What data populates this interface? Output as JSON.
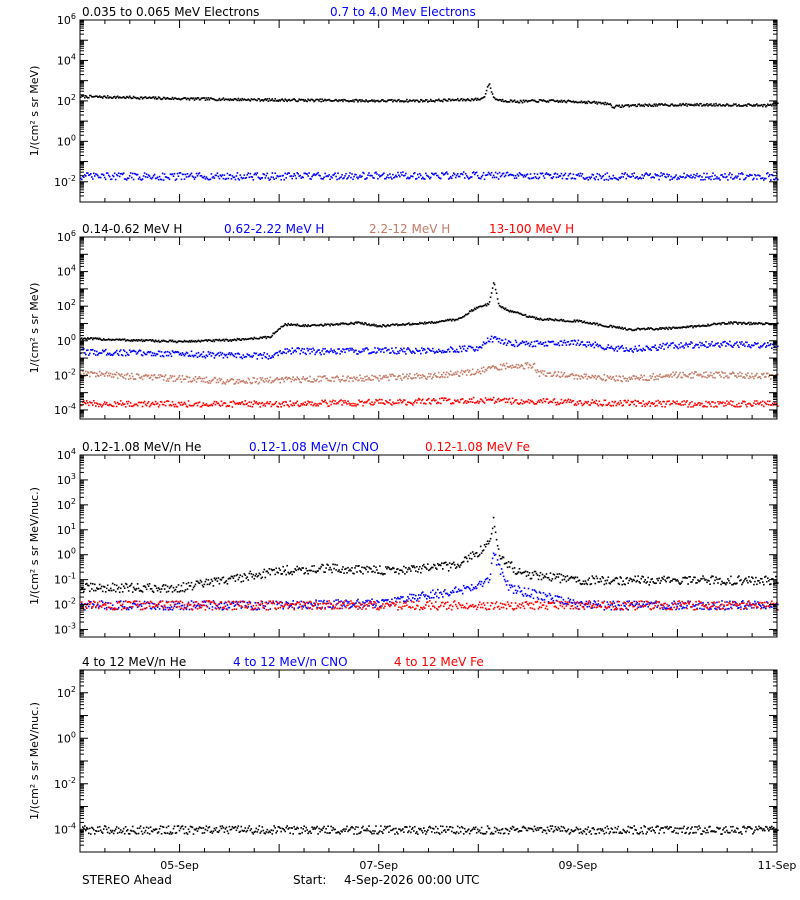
{
  "footer": {
    "spacecraft": "STEREO Ahead",
    "start_label": "Start:",
    "start_value": "4-Sep-2026 00:00 UTC"
  },
  "colors": {
    "black": "#000000",
    "blue": "#0000ff",
    "brown": "#c47b67",
    "red": "#ff0000"
  },
  "chart_data": [
    {
      "type": "scatter",
      "ylabel": "1/(cm² s sr MeV)",
      "scale": "log",
      "ylim": [
        0.001,
        1000000
      ],
      "yticks": [
        {
          "value": 1000000,
          "label": "10^6"
        },
        {
          "value": 10000,
          "label": "10^4"
        },
        {
          "value": 100,
          "label": "10^2"
        },
        {
          "value": 1,
          "label": "10^0"
        },
        {
          "value": 0.01,
          "label": "10^-2"
        }
      ],
      "series": [
        {
          "name": "0.035 to 0.065 MeV Electrons",
          "color": "#000000",
          "x": [
            4.0,
            4.5,
            5.0,
            5.5,
            6.0,
            6.5,
            7.0,
            7.5,
            8.0,
            8.05,
            8.1,
            8.15,
            8.2,
            8.4,
            8.6,
            9.0,
            9.3,
            9.35,
            9.5,
            10.0,
            10.5,
            10.9,
            11.0
          ],
          "y": [
            180,
            160,
            140,
            130,
            120,
            115,
            110,
            112,
            130,
            160,
            800,
            150,
            120,
            100,
            110,
            100,
            80,
            55,
            65,
            70,
            70,
            65,
            80
          ]
        },
        {
          "name": "0.7 to 4.0 Mev Electrons",
          "color": "#0000ff",
          "x": [
            4.0,
            5.0,
            6.0,
            7.0,
            8.0,
            9.0,
            10.0,
            11.0
          ],
          "y": [
            0.02,
            0.02,
            0.02,
            0.022,
            0.022,
            0.02,
            0.02,
            0.02
          ]
        }
      ]
    },
    {
      "type": "scatter",
      "ylabel": "1/(cm² s sr MeV)",
      "scale": "log",
      "ylim": [
        3e-05,
        1000000
      ],
      "yticks": [
        {
          "value": 1000000,
          "label": "10^6"
        },
        {
          "value": 10000,
          "label": "10^4"
        },
        {
          "value": 100,
          "label": "10^2"
        },
        {
          "value": 1,
          "label": "10^0"
        },
        {
          "value": 0.01,
          "label": "10^-2"
        },
        {
          "value": 0.0001,
          "label": "10^-4"
        }
      ],
      "series": [
        {
          "name": "0.14-0.62 MeV H",
          "color": "#000000",
          "x": [
            4.0,
            4.5,
            5.0,
            5.5,
            5.9,
            6.05,
            6.3,
            6.8,
            7.0,
            7.5,
            7.8,
            7.9,
            8.0,
            8.1,
            8.15,
            8.2,
            8.3,
            8.6,
            9.0,
            9.5,
            10.0,
            10.5,
            11.0
          ],
          "y": [
            1.5,
            1.2,
            1.0,
            1.2,
            1.8,
            10,
            8,
            12,
            8,
            12,
            20,
            50,
            100,
            150,
            3000,
            120,
            60,
            20,
            15,
            5,
            6,
            12,
            10
          ]
        },
        {
          "name": "0.62-2.22 MeV H",
          "color": "#0000ff",
          "x": [
            4.0,
            4.5,
            5.0,
            5.5,
            5.9,
            6.05,
            6.5,
            7.0,
            7.5,
            8.0,
            8.1,
            8.3,
            8.6,
            9.0,
            9.5,
            10.0,
            10.5,
            11.0
          ],
          "y": [
            0.25,
            0.22,
            0.2,
            0.15,
            0.15,
            0.3,
            0.25,
            0.3,
            0.28,
            0.45,
            1.5,
            0.8,
            0.7,
            0.8,
            0.35,
            0.6,
            0.7,
            0.6
          ]
        },
        {
          "name": "2.2-12 MeV H",
          "color": "#c47b67",
          "x": [
            4.0,
            4.5,
            5.0,
            5.5,
            6.0,
            6.5,
            7.0,
            7.5,
            7.8,
            8.0,
            8.3,
            8.55,
            8.6,
            9.0,
            9.5,
            10.0,
            10.5,
            11.0
          ],
          "y": [
            0.015,
            0.01,
            0.007,
            0.005,
            0.006,
            0.007,
            0.008,
            0.01,
            0.014,
            0.02,
            0.04,
            0.04,
            0.015,
            0.01,
            0.007,
            0.012,
            0.012,
            0.01
          ]
        },
        {
          "name": "13-100 MeV H",
          "color": "#ff0000",
          "x": [
            4.0,
            5.0,
            6.0,
            7.0,
            8.0,
            9.0,
            10.0,
            11.0
          ],
          "y": [
            0.00025,
            0.00025,
            0.00025,
            0.0003,
            0.0004,
            0.0003,
            0.00025,
            0.00025
          ]
        }
      ]
    },
    {
      "type": "scatter",
      "ylabel": "1/(cm² s sr MeV/nuc.)",
      "scale": "log",
      "ylim": [
        0.0005,
        10000
      ],
      "yticks": [
        {
          "value": 10000,
          "label": "10^4"
        },
        {
          "value": 1000,
          "label": "10^3"
        },
        {
          "value": 100,
          "label": "10^2"
        },
        {
          "value": 10,
          "label": "10^1"
        },
        {
          "value": 1,
          "label": "10^0"
        },
        {
          "value": 0.1,
          "label": "10^-1"
        },
        {
          "value": 0.01,
          "label": "10^-2"
        },
        {
          "value": 0.001,
          "label": "10^-3"
        }
      ],
      "series": [
        {
          "name": "0.12-1.08 MeV/n He",
          "color": "#000000",
          "x": [
            4.0,
            5.0,
            6.0,
            6.5,
            7.0,
            7.5,
            7.8,
            8.0,
            8.1,
            8.15,
            8.2,
            8.4,
            9.0,
            10.0,
            11.0
          ],
          "y": [
            0.05,
            0.05,
            0.25,
            0.3,
            0.25,
            0.3,
            0.4,
            1.5,
            3,
            30,
            1,
            0.2,
            0.1,
            0.1,
            0.1
          ]
        },
        {
          "name": "0.12-1.08 MeV/n CNO",
          "color": "#0000ff",
          "x": [
            4.0,
            5.0,
            6.0,
            7.0,
            7.8,
            8.0,
            8.1,
            8.15,
            8.3,
            9.0,
            10.0,
            11.0
          ],
          "y": [
            0.01,
            0.01,
            0.01,
            0.012,
            0.04,
            0.06,
            0.1,
            1.0,
            0.05,
            0.01,
            0.01,
            0.01
          ]
        },
        {
          "name": "0.12-1.08 MeV Fe",
          "color": "#ff0000",
          "x": [
            4.0,
            5.0,
            6.0,
            7.0,
            8.0,
            9.0,
            10.0,
            11.0
          ],
          "y": [
            0.01,
            0.01,
            0.01,
            0.01,
            0.01,
            0.01,
            0.01,
            0.01
          ]
        }
      ]
    },
    {
      "type": "scatter",
      "ylabel": "1/(cm² s sr MeV/nuc.)",
      "scale": "log",
      "ylim": [
        1e-05,
        1000
      ],
      "yticks": [
        {
          "value": 100,
          "label": "10^2"
        },
        {
          "value": 1,
          "label": "10^0"
        },
        {
          "value": 0.01,
          "label": "10^-2"
        },
        {
          "value": 0.0001,
          "label": "10^-4"
        }
      ],
      "series": [
        {
          "name": "4 to 12 MeV/n He",
          "color": "#000000",
          "x": [
            4.0,
            5.0,
            6.0,
            7.0,
            8.0,
            9.0,
            10.0,
            11.0
          ],
          "y": [
            0.0001,
            0.0001,
            0.0001,
            0.0001,
            0.0001,
            0.0001,
            0.0001,
            0.0001
          ]
        },
        {
          "name": "4 to 12 MeV/n CNO",
          "color": "#0000ff",
          "x": [
            4.4,
            7.3
          ],
          "y": [
            1e-05,
            1e-05
          ]
        },
        {
          "name": "4 to 12 MeV Fe",
          "color": "#ff0000",
          "x": [],
          "y": []
        }
      ]
    }
  ],
  "xaxis": {
    "xlim": [
      4,
      11
    ],
    "ticks": [
      {
        "value": 5,
        "label": "05-Sep"
      },
      {
        "value": 7,
        "label": "07-Sep"
      },
      {
        "value": 9,
        "label": "09-Sep"
      },
      {
        "value": 11,
        "label": "11-Sep"
      }
    ]
  }
}
